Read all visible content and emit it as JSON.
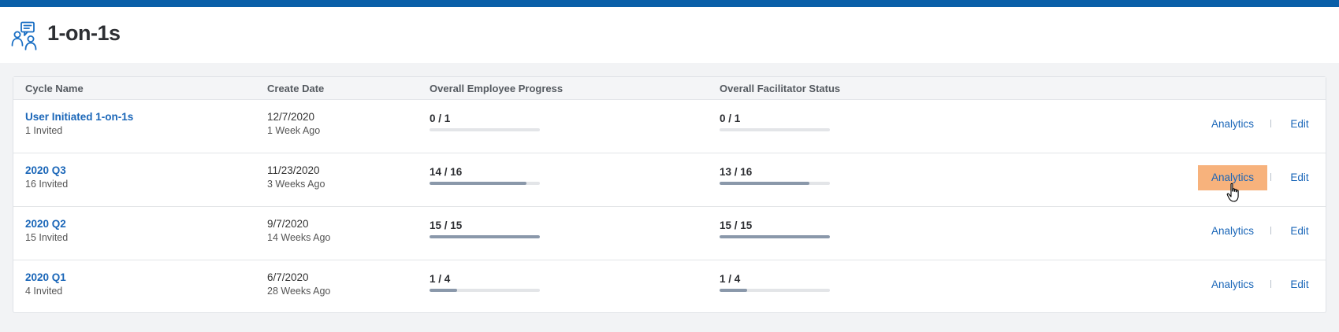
{
  "header": {
    "title": "1-on-1s",
    "icon": "people-chat-icon",
    "accent": "#0a5fa8"
  },
  "table": {
    "columns": [
      "Cycle Name",
      "Create Date",
      "Overall Employee Progress",
      "Overall Facilitator Status"
    ],
    "rows": [
      {
        "name": "User Initiated 1-on-1s",
        "invited": "1 Invited",
        "date": "12/7/2020",
        "ago": "1 Week Ago",
        "employee_progress": "0 / 1",
        "employee_fraction": 0,
        "facilitator_status": "0 / 1",
        "facilitator_fraction": 0,
        "analytics": "Analytics",
        "edit": "Edit"
      },
      {
        "name": "2020 Q3",
        "invited": "16 Invited",
        "date": "11/23/2020",
        "ago": "3 Weeks Ago",
        "employee_progress": "14 / 16",
        "employee_fraction": 0.875,
        "facilitator_status": "13 / 16",
        "facilitator_fraction": 0.8125,
        "analytics": "Analytics",
        "edit": "Edit"
      },
      {
        "name": "2020 Q2",
        "invited": "15 Invited",
        "date": "9/7/2020",
        "ago": "14 Weeks Ago",
        "employee_progress": "15 / 15",
        "employee_fraction": 1,
        "facilitator_status": "15 / 15",
        "facilitator_fraction": 1,
        "analytics": "Analytics",
        "edit": "Edit"
      },
      {
        "name": "2020 Q1",
        "invited": "4 Invited",
        "date": "6/7/2020",
        "ago": "28 Weeks Ago",
        "employee_progress": "1 / 4",
        "employee_fraction": 0.25,
        "facilitator_status": "1 / 4",
        "facilitator_fraction": 0.25,
        "analytics": "Analytics",
        "edit": "Edit"
      }
    ]
  },
  "hover_color": "#f7b27c",
  "cursor": "hand-pointer-icon"
}
